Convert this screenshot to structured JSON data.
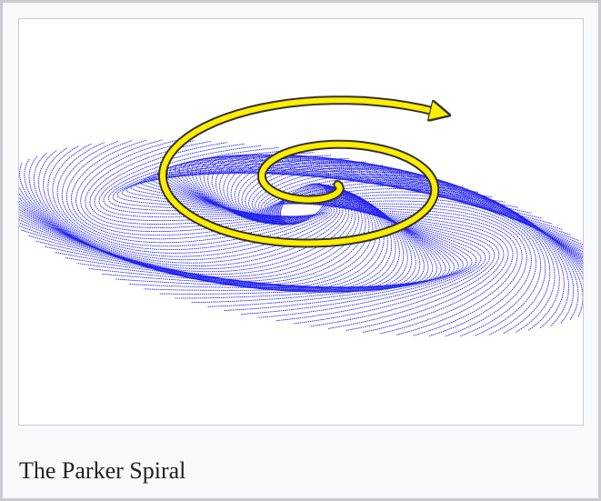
{
  "caption": "The Parker Spiral"
}
